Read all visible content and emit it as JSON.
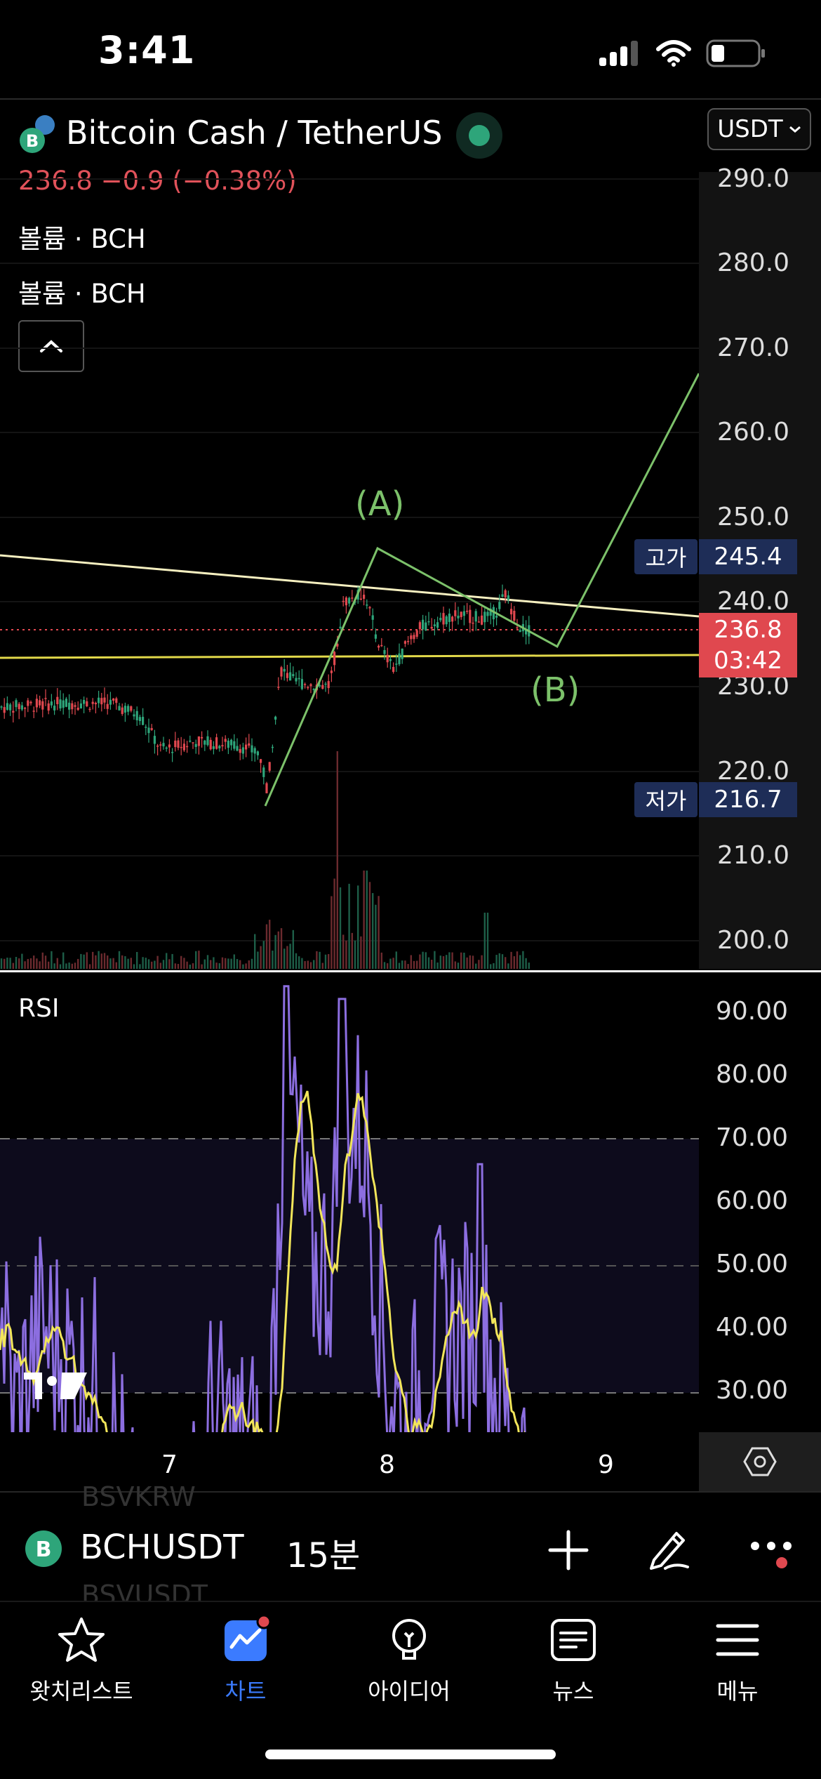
{
  "status": {
    "time": "3:41"
  },
  "header": {
    "title": "Bitcoin Cash / TetherUS",
    "price_line": "236.8  −0.9 (−0.38%)",
    "volume_label_1": "볼륨 · BCH",
    "volume_label_2": "볼륨 · BCH",
    "currency": "USDT"
  },
  "price_axis": {
    "ticks": [
      "290.0",
      "280.0",
      "270.0",
      "260.0",
      "250.0",
      "240.0",
      "230.0",
      "220.0",
      "210.0",
      "200.0"
    ],
    "high_label": "고가",
    "high_value": "245.4",
    "low_label": "저가",
    "low_value": "216.7",
    "last_price": "236.8",
    "countdown": "03:42"
  },
  "annotations": {
    "wave_a": "(A)",
    "wave_b": "(B)"
  },
  "rsi": {
    "title": "RSI",
    "ticks": [
      "90.00",
      "80.00",
      "70.00",
      "60.00",
      "50.00",
      "40.00",
      "30.00"
    ]
  },
  "time_axis": {
    "ticks": [
      "7",
      "8",
      "9"
    ]
  },
  "ghost_list": {
    "above": "BSVKRW",
    "below": "BSVUSDT"
  },
  "toolbar": {
    "symbol": "BCHUSDT",
    "interval": "15분"
  },
  "tabs": [
    {
      "label": "왓치리스트",
      "icon": "star-icon"
    },
    {
      "label": "차트",
      "icon": "chart-icon"
    },
    {
      "label": "아이디어",
      "icon": "lightbulb-icon"
    },
    {
      "label": "뉴스",
      "icon": "news-icon"
    },
    {
      "label": "메뉴",
      "icon": "menu-icon"
    }
  ],
  "colors": {
    "up": "#2ea57a",
    "down": "#e0484f",
    "rsi": "#8c6ee0",
    "rsi_ma": "#f2e65a",
    "wave": "#7cc16a",
    "trend": "#f5efc0",
    "active_tab": "#3b7bff"
  }
}
